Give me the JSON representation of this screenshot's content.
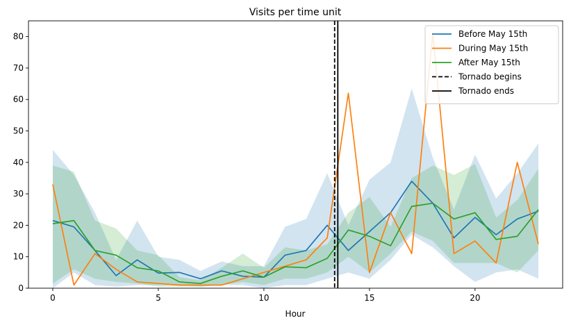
{
  "chart_data": {
    "type": "line",
    "title": "Visits per time unit",
    "xlabel": "Hour",
    "ylabel": "",
    "xlim": [
      -1.15,
      24.15
    ],
    "ylim": [
      0,
      85
    ],
    "xticks": [
      0,
      5,
      10,
      15,
      20
    ],
    "yticks": [
      0,
      10,
      20,
      30,
      40,
      50,
      60,
      70,
      80
    ],
    "grid": false,
    "legend_position": "top-right",
    "x": [
      0,
      1,
      2,
      3,
      4,
      5,
      6,
      7,
      8,
      9,
      10,
      11,
      12,
      13,
      14,
      15,
      16,
      17,
      18,
      19,
      20,
      21,
      22,
      23
    ],
    "series": [
      {
        "name": "Before May 15th",
        "color": "#1f77b4",
        "values": [
          21.5,
          19.5,
          12.0,
          4.0,
          9.0,
          4.8,
          5.0,
          3.0,
          5.5,
          3.8,
          3.5,
          10.5,
          12.0,
          20.0,
          12.0,
          18.0,
          24.0,
          34.0,
          27.0,
          16.0,
          22.5,
          17.0,
          22.0,
          24.5
        ],
        "band_lower": [
          0,
          5,
          1,
          0.5,
          1,
          1,
          1,
          0.5,
          1,
          1,
          0,
          1,
          1,
          3,
          5,
          3,
          9,
          17,
          13,
          7,
          2,
          5,
          6,
          3
        ],
        "band_upper": [
          44,
          36,
          24,
          9,
          21.5,
          10,
          9,
          5.5,
          8.5,
          7,
          7,
          19.5,
          22,
          36.5,
          20,
          34.5,
          40,
          63.5,
          41.5,
          25,
          42.5,
          28.5,
          36.5,
          46
        ]
      },
      {
        "name": "During May 15th",
        "color": "#ff7f0e",
        "values": [
          33,
          1,
          11,
          6,
          2,
          1.5,
          1,
          1,
          1,
          3,
          5,
          7,
          9,
          16,
          62,
          5,
          24,
          11,
          81,
          11,
          15,
          8,
          40,
          14
        ]
      },
      {
        "name": "After May 15th",
        "color": "#2ca02c",
        "values": [
          20.5,
          21.5,
          12.0,
          10.5,
          6.5,
          5.5,
          2.0,
          1.5,
          3.8,
          5.5,
          3.5,
          6.8,
          6.5,
          9.5,
          18.5,
          16.5,
          13.5,
          26.0,
          27.0,
          22.0,
          24.0,
          15.5,
          16.5,
          25.0
        ],
        "band_lower": [
          1.5,
          6,
          3,
          2,
          1.5,
          0.5,
          0.5,
          0.5,
          1,
          2,
          1,
          3,
          3,
          5,
          10,
          5,
          11,
          18,
          15,
          8,
          8,
          8,
          5,
          12
        ],
        "band_upper": [
          39,
          37,
          21.5,
          19,
          12,
          10.5,
          3.5,
          2.5,
          6.5,
          11,
          6.5,
          13,
          12,
          14,
          24,
          29,
          19.5,
          35,
          39,
          36,
          39.5,
          22.5,
          28,
          38
        ]
      }
    ],
    "vlines": [
      {
        "name": "Tornado begins",
        "x": 13.35,
        "style": "dashed",
        "color": "#000000"
      },
      {
        "name": "Tornado ends",
        "x": 13.5,
        "style": "solid",
        "color": "#000000"
      }
    ]
  }
}
